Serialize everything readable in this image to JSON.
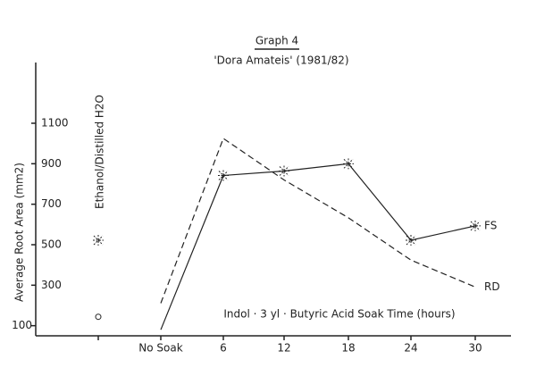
{
  "chart_data": {
    "type": "line",
    "caption": "Graph 4",
    "title": "'Dora Amateis' (1981/82)",
    "x_label": "Indol · 3 yl · Butyric Acid Soak Time (hours)",
    "y_label": "Average Root Area (mm2)",
    "categories": [
      "No Soak",
      "6",
      "12",
      "18",
      "24",
      "30"
    ],
    "series": [
      {
        "name": "FS",
        "color": "#222222",
        "dash": "none",
        "values": [
          80,
          842,
          864,
          900,
          522,
          593
        ]
      },
      {
        "name": "RD",
        "color": "#222222",
        "dash": "7,4",
        "values": [
          211,
          1025,
          820,
          633,
          424,
          291
        ]
      }
    ],
    "control": {
      "label": "Ethanol/Distilled H2O",
      "values": [
        522,
        144
      ]
    },
    "ylim": [
      50,
      1400
    ],
    "yticks": [
      100,
      300,
      500,
      700,
      900,
      1100
    ],
    "grid": false
  }
}
